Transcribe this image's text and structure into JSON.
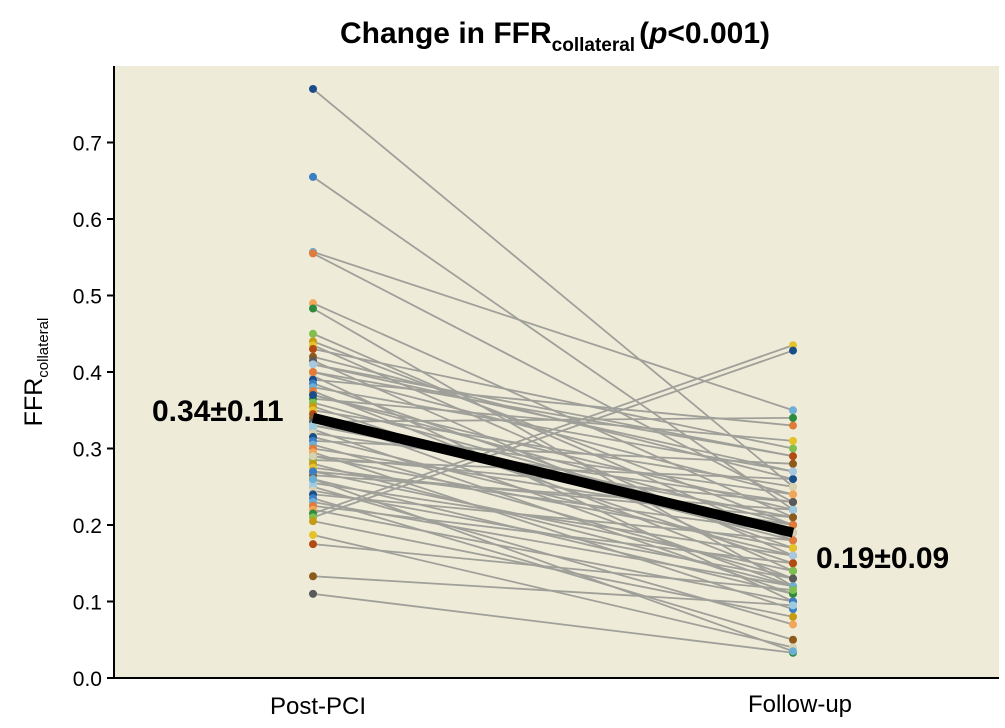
{
  "chart_data": {
    "type": "line",
    "title": {
      "prefix": "Change in FFR",
      "subscript": "collateral",
      "p_open": "(",
      "p_italic": "p",
      "p_rest": "<0.001)"
    },
    "ylabel": {
      "main": "FFR",
      "subscript": "collateral"
    },
    "xlabel": "",
    "categories": [
      "Post-PCI",
      "Follow-up"
    ],
    "ylim": [
      0,
      0.8
    ],
    "yticks": [
      0.0,
      0.1,
      0.2,
      0.3,
      0.4,
      0.5,
      0.6,
      0.7
    ],
    "ytick_labels": [
      "0.0",
      "0.1",
      "0.2",
      "0.3",
      "0.4",
      "0.5",
      "0.6",
      "0.7"
    ],
    "grid": false,
    "background": "#efebd9",
    "line_color": "#a0a09a",
    "mean_color": "#000000",
    "mean": {
      "post_label": "0.34±0.11",
      "follow_label": "0.19±0.09",
      "values": [
        0.34,
        0.19
      ]
    },
    "dot_colors": [
      "#1a4e8a",
      "#3a7fc4",
      "#6baed6",
      "#e07b39",
      "#f2a65a",
      "#2e8b3d",
      "#7fbf4d",
      "#c59b12",
      "#e6c229",
      "#b34a12",
      "#8c5a1a",
      "#5a5a5a",
      "#a8c8e0",
      "#9ecae1",
      "#d9d2b0"
    ],
    "pairs": [
      [
        0.77,
        0.25
      ],
      [
        0.655,
        0.22
      ],
      [
        0.557,
        0.35
      ],
      [
        0.555,
        0.23
      ],
      [
        0.49,
        0.21
      ],
      [
        0.483,
        0.12
      ],
      [
        0.45,
        0.18
      ],
      [
        0.44,
        0.2
      ],
      [
        0.435,
        0.16
      ],
      [
        0.43,
        0.3
      ],
      [
        0.42,
        0.26
      ],
      [
        0.415,
        0.14
      ],
      [
        0.41,
        0.29
      ],
      [
        0.4,
        0.24
      ],
      [
        0.395,
        0.1
      ],
      [
        0.39,
        0.33
      ],
      [
        0.385,
        0.17
      ],
      [
        0.38,
        0.27
      ],
      [
        0.375,
        0.13
      ],
      [
        0.37,
        0.22
      ],
      [
        0.365,
        0.31
      ],
      [
        0.36,
        0.19
      ],
      [
        0.355,
        0.15
      ],
      [
        0.35,
        0.25
      ],
      [
        0.345,
        0.12
      ],
      [
        0.34,
        0.18
      ],
      [
        0.335,
        0.34
      ],
      [
        0.33,
        0.21
      ],
      [
        0.325,
        0.11
      ],
      [
        0.32,
        0.23
      ],
      [
        0.315,
        0.16
      ],
      [
        0.31,
        0.28
      ],
      [
        0.305,
        0.13
      ],
      [
        0.3,
        0.2
      ],
      [
        0.295,
        0.09
      ],
      [
        0.29,
        0.17
      ],
      [
        0.285,
        0.26
      ],
      [
        0.28,
        0.12
      ],
      [
        0.275,
        0.19
      ],
      [
        0.27,
        0.14
      ],
      [
        0.265,
        0.22
      ],
      [
        0.26,
        0.11
      ],
      [
        0.255,
        0.16
      ],
      [
        0.25,
        0.07
      ],
      [
        0.245,
        0.13
      ],
      [
        0.24,
        0.18
      ],
      [
        0.235,
        0.05
      ],
      [
        0.23,
        0.12
      ],
      [
        0.225,
        0.15
      ],
      [
        0.22,
        0.1
      ],
      [
        0.215,
        0.435
      ],
      [
        0.21,
        0.428
      ],
      [
        0.205,
        0.08
      ],
      [
        0.187,
        0.04
      ],
      [
        0.175,
        0.115
      ],
      [
        0.133,
        0.095
      ],
      [
        0.11,
        0.033
      ],
      [
        0.41,
        0.27
      ],
      [
        0.33,
        0.24
      ],
      [
        0.29,
        0.23
      ],
      [
        0.37,
        0.2
      ],
      [
        0.27,
        0.21
      ],
      [
        0.26,
        0.035
      ],
      [
        0.4,
        0.29
      ]
    ]
  }
}
